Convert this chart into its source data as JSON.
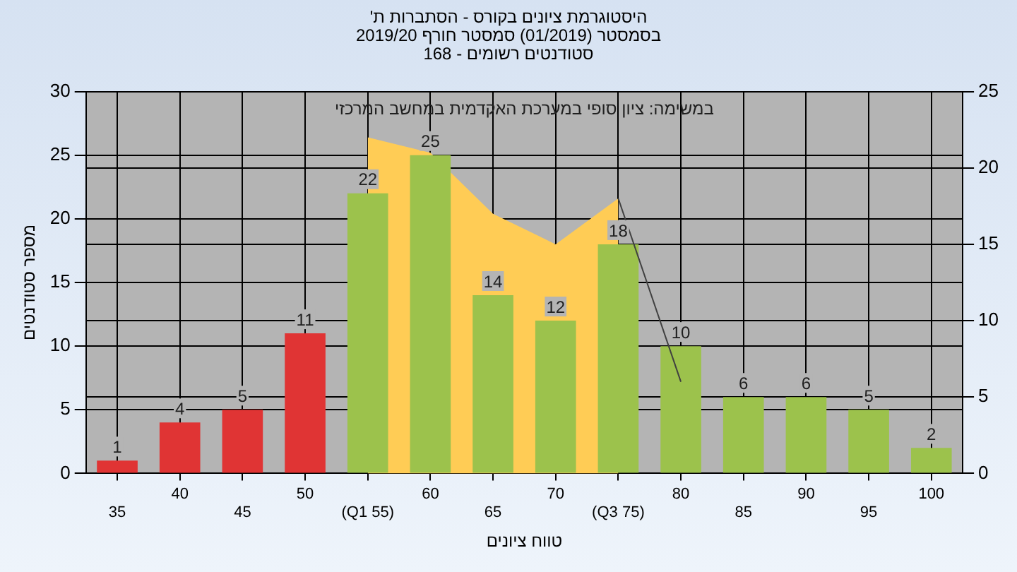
{
  "chart_data": {
    "type": "bar",
    "title": "היסטוגרמת ציונים בקורס - הסתברות ת'",
    "subtitle": "בסמסטר (01/2019) סמסטר חורף 2019/20\nסטודנטים רשומים - 168",
    "xlabel": "טווח ציונים",
    "ylabel": "מספר סטודנטים",
    "categories": [
      "35",
      "40",
      "45",
      "50",
      "(Q1 55)",
      "60",
      "65",
      "70",
      "(Q3 75)",
      "80",
      "85",
      "90",
      "95",
      "100"
    ],
    "series": [
      {
        "colors": [
          "#e03434",
          "#e03434",
          "#e03434",
          "#e03434",
          "#9cc24c",
          "#9cc24c",
          "#9cc24c",
          "#9cc24c",
          "#9cc24c",
          "#9cc24c",
          "#9cc24c",
          "#9cc24c",
          "#9cc24c",
          "#9cc24c"
        ],
        "values": [
          1,
          4,
          5,
          11,
          22,
          25,
          14,
          12,
          18,
          10,
          6,
          6,
          5,
          2
        ],
        "value_labels": [
          "1",
          "4",
          "5",
          "11",
          "22",
          "25",
          "14",
          "12",
          "18",
          "10",
          "6",
          "6",
          "5",
          "2"
        ]
      },
      {
        "type": "area",
        "axis": "y2",
        "color": "#ffcc55",
        "values": [
          null,
          null,
          null,
          null,
          22,
          21,
          17,
          15,
          18,
          null,
          null,
          null,
          null,
          null
        ]
      },
      {
        "type": "line",
        "axis": "y2",
        "color": "#404040",
        "values": [
          null,
          null,
          null,
          null,
          null,
          null,
          null,
          null,
          18,
          6,
          null,
          null,
          null,
          null
        ]
      }
    ],
    "ylim": [
      0,
      30
    ],
    "yticks": [
      0,
      5,
      10,
      15,
      20,
      25,
      30
    ],
    "y2lim": [
      0,
      25
    ],
    "y2ticks": [
      0,
      5,
      10,
      15,
      20,
      25
    ],
    "grid": true,
    "legend": false,
    "annotations": [
      "במשימה: ציון סופי במערכת האקדמית במחשב המרכזי"
    ]
  }
}
